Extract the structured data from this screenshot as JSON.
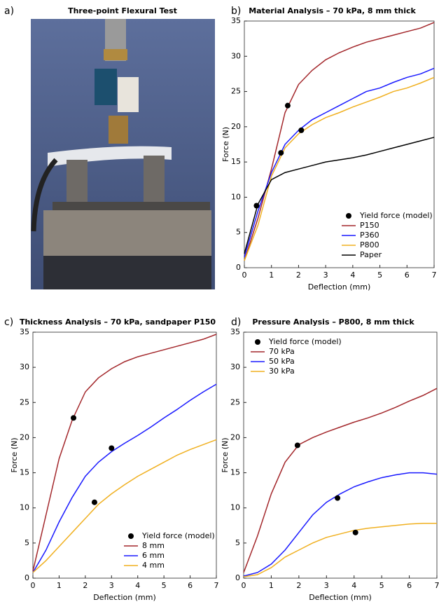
{
  "photo": {
    "label": "a)",
    "title": "Three-point Flexural Test"
  },
  "chart_data": [
    {
      "label": "b)",
      "type": "line",
      "title": "Material Analysis – 70 kPa, 8 mm thick",
      "xlabel": "Deflection (mm)",
      "ylabel": "Force (N)",
      "x": [
        0,
        0.5,
        1,
        1.5,
        2,
        2.5,
        3,
        3.5,
        4,
        4.5,
        5,
        5.5,
        6,
        6.5,
        7
      ],
      "xlim": [
        0,
        7
      ],
      "ylim": [
        0,
        35
      ],
      "xticks": [
        0,
        1,
        2,
        3,
        4,
        5,
        6,
        7
      ],
      "yticks": [
        0,
        5,
        10,
        15,
        20,
        25,
        30,
        35
      ],
      "legend": "lower right",
      "series": [
        {
          "name": "Yield force (model)",
          "type": "scatter",
          "color": "#000000",
          "x": [
            0.45,
            1.35,
            1.6,
            2.1
          ],
          "values": [
            8.8,
            16.3,
            23,
            19.5
          ]
        },
        {
          "name": "P150",
          "color": "#a3272b",
          "values": [
            1,
            7,
            14,
            22,
            26,
            28,
            29.5,
            30.5,
            31.3,
            32,
            32.5,
            33,
            33.5,
            34,
            34.8
          ]
        },
        {
          "name": "P360",
          "color": "#1a1aff",
          "values": [
            1.5,
            8,
            13.5,
            17.5,
            19.5,
            21,
            22,
            23,
            24,
            25,
            25.5,
            26.3,
            27,
            27.5,
            28.3
          ]
        },
        {
          "name": "P800",
          "color": "#f0b020",
          "values": [
            1,
            6,
            13,
            17,
            19,
            20.3,
            21.3,
            22,
            22.8,
            23.5,
            24.2,
            25,
            25.5,
            26.2,
            27
          ]
        },
        {
          "name": "Paper",
          "color": "#000000",
          "values": [
            2,
            9,
            12.5,
            13.5,
            14,
            14.5,
            15,
            15.3,
            15.6,
            16,
            16.5,
            17,
            17.5,
            18,
            18.5
          ]
        }
      ]
    },
    {
      "label": "c)",
      "type": "line",
      "title": "Thickness Analysis – 70 kPa, sandpaper P150",
      "xlabel": "Deflection (mm)",
      "ylabel": "Force (N)",
      "x": [
        0,
        0.5,
        1,
        1.5,
        2,
        2.5,
        3,
        3.5,
        4,
        4.5,
        5,
        5.5,
        6,
        6.5,
        7
      ],
      "xlim": [
        0,
        7
      ],
      "ylim": [
        0,
        35
      ],
      "xticks": [
        0,
        1,
        2,
        3,
        4,
        5,
        6,
        7
      ],
      "yticks": [
        0,
        5,
        10,
        15,
        20,
        25,
        30,
        35
      ],
      "legend": "lower right",
      "series": [
        {
          "name": "Yield force (model)",
          "type": "scatter",
          "color": "#000000",
          "x": [
            1.55,
            3,
            2.35
          ],
          "values": [
            22.8,
            18.5,
            10.8
          ]
        },
        {
          "name": "8 mm",
          "color": "#a3272b",
          "values": [
            1,
            9,
            17,
            22.5,
            26.5,
            28.5,
            29.8,
            30.8,
            31.5,
            32,
            32.5,
            33,
            33.5,
            34,
            34.7
          ]
        },
        {
          "name": "6 mm",
          "color": "#1a1aff",
          "values": [
            0.8,
            4,
            8,
            11.5,
            14.5,
            16.5,
            18,
            19.2,
            20.3,
            21.5,
            22.8,
            24,
            25.3,
            26.5,
            27.6
          ]
        },
        {
          "name": "4 mm",
          "color": "#f0b020",
          "values": [
            0.8,
            2.5,
            4.5,
            6.5,
            8.5,
            10.5,
            12,
            13.3,
            14.5,
            15.5,
            16.5,
            17.5,
            18.3,
            19,
            19.7
          ]
        }
      ]
    },
    {
      "label": "d)",
      "type": "line",
      "title": "Pressure Analysis – P800, 8 mm thick",
      "xlabel": "Deflection (mm)",
      "ylabel": "Force (N)",
      "x": [
        0,
        0.5,
        1,
        1.5,
        2,
        2.5,
        3,
        3.5,
        4,
        4.5,
        5,
        5.5,
        6,
        6.5,
        7
      ],
      "xlim": [
        0,
        7
      ],
      "ylim": [
        0,
        35
      ],
      "xticks": [
        0,
        1,
        2,
        3,
        4,
        5,
        6,
        7
      ],
      "yticks": [
        0,
        5,
        10,
        15,
        20,
        25,
        30,
        35
      ],
      "legend": "upper left",
      "series": [
        {
          "name": "Yield force (model)",
          "type": "scatter",
          "color": "#000000",
          "x": [
            1.95,
            3.4,
            4.05
          ],
          "values": [
            18.9,
            11.4,
            6.5
          ]
        },
        {
          "name": "70 kPa",
          "color": "#a3272b",
          "values": [
            0.8,
            6,
            12,
            16.5,
            19,
            20,
            20.8,
            21.5,
            22.2,
            22.8,
            23.5,
            24.3,
            25.2,
            26,
            27
          ]
        },
        {
          "name": "50 kPa",
          "color": "#1a1aff",
          "values": [
            0.3,
            0.8,
            2,
            4,
            6.5,
            9,
            10.8,
            12,
            13,
            13.7,
            14.3,
            14.7,
            15,
            15,
            14.8
          ]
        },
        {
          "name": "30 kPa",
          "color": "#f0b020",
          "values": [
            0.2,
            0.5,
            1.5,
            3,
            4,
            5,
            5.8,
            6.3,
            6.8,
            7.1,
            7.3,
            7.5,
            7.7,
            7.8,
            7.8
          ]
        }
      ]
    }
  ]
}
